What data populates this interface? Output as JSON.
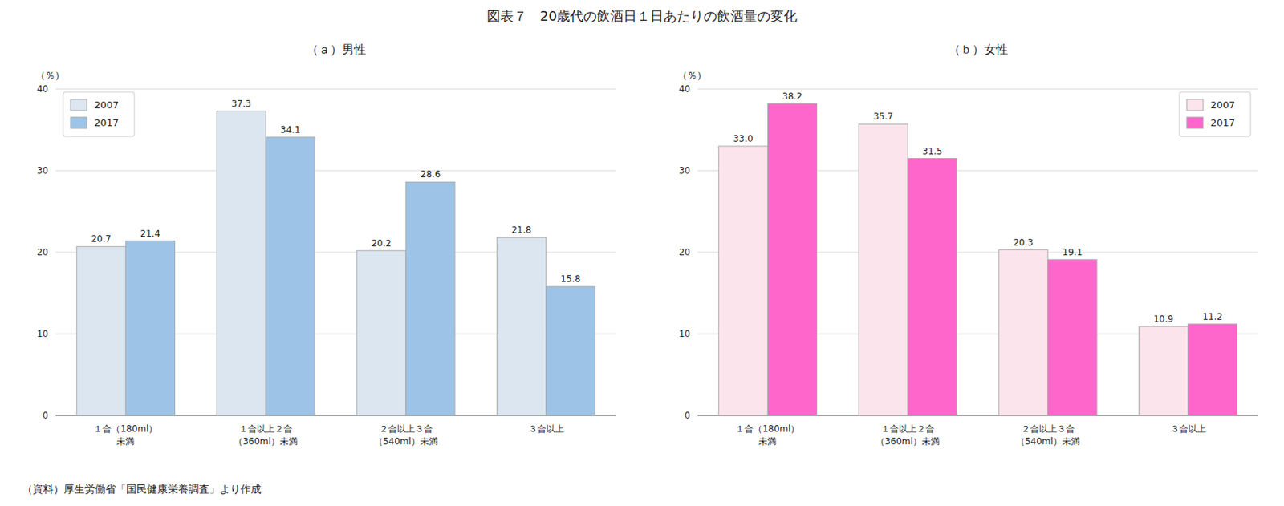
{
  "title": "図表７　20歳代の飲酒日１日あたりの飲酒量の変化",
  "footnote": "（資料）厚生労働省「国民健康栄養調査」より作成",
  "chart_data": [
    {
      "type": "bar",
      "title": "（ａ）男性",
      "categories": [
        "１合（180ml）\n未満",
        "１合以上２合\n（360ml）未満",
        "２合以上３合\n（540ml）未満",
        "３合以上"
      ],
      "series": [
        {
          "name": "2007",
          "color": "#dce6f1",
          "values": [
            20.7,
            37.3,
            20.2,
            21.8
          ]
        },
        {
          "name": "2017",
          "color": "#9dc3e6",
          "values": [
            21.4,
            34.1,
            28.6,
            15.8
          ]
        }
      ],
      "ylabel": "（％）",
      "ylim": [
        0,
        40
      ],
      "yticks": [
        0,
        10,
        20,
        30,
        40
      ],
      "grid": true,
      "legend": "upper left",
      "data_labels": true
    },
    {
      "type": "bar",
      "title": "（ｂ）女性",
      "categories": [
        "１合（180ml）\n未満",
        "１合以上２合\n（360ml）未満",
        "２合以上３合\n（540ml）未満",
        "３合以上"
      ],
      "series": [
        {
          "name": "2007",
          "color": "#fce4ec",
          "values": [
            33.0,
            35.7,
            20.3,
            10.9
          ],
          "value_labels": [
            "33.0",
            "35.7",
            "20.3",
            "10.9"
          ]
        },
        {
          "name": "2017",
          "color": "#ff66cc",
          "values": [
            38.2,
            31.5,
            19.1,
            11.2
          ]
        }
      ],
      "ylabel": "（％）",
      "ylim": [
        0,
        40
      ],
      "yticks": [
        0,
        10,
        20,
        30,
        40
      ],
      "grid": true,
      "legend": "upper right",
      "data_labels": true
    }
  ]
}
